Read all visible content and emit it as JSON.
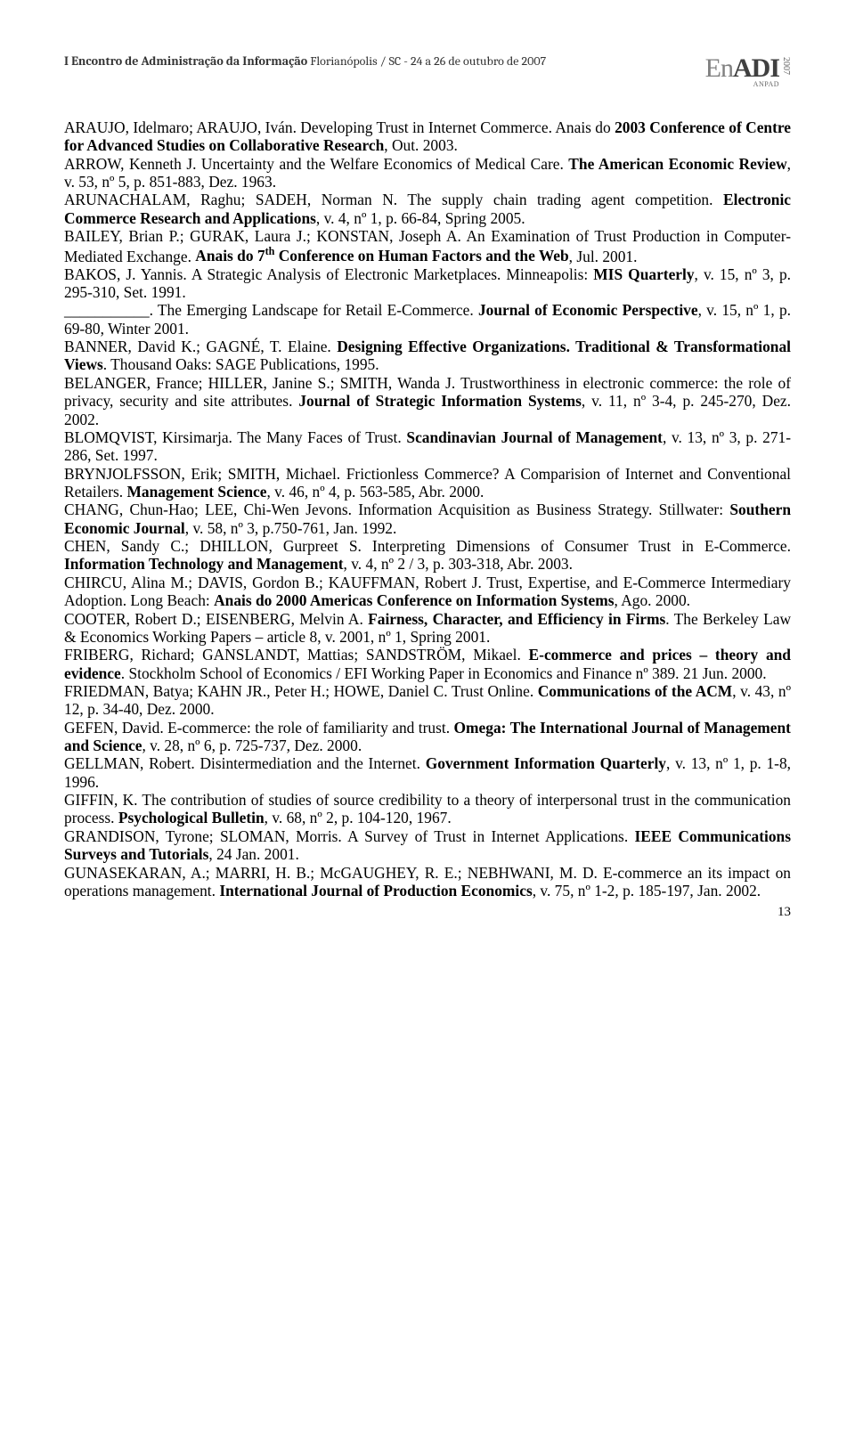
{
  "header": {
    "title_bold": "I Encontro de Administração da Informação",
    "title_rest": "   Florianópolis / SC - 24 a 26 de outubro de 2007",
    "logo_en": "En",
    "logo_adi": "ADI",
    "logo_year": "2007",
    "logo_sub": "ANPAD"
  },
  "references": [
    "ARAUJO, Idelmaro; ARAUJO, Iván. Developing Trust in Internet Commerce. Anais do <b>2003 Conference of Centre for Advanced Studies on Collaborative Research</b>, Out. 2003.",
    "ARROW, Kenneth J. Uncertainty and the Welfare Economics of Medical Care. <b>The American Economic Review</b>, v. 53, nº 5, p. 851-883, Dez. 1963.",
    "ARUNACHALAM, Raghu; SADEH, Norman N. The supply chain trading agent competition. <b>Electronic Commerce Research and Applications</b>, v. 4, nº 1, p. 66-84, Spring 2005.",
    "BAILEY, Brian P.; GURAK, Laura J.; KONSTAN, Joseph A. An Examination of Trust Production in Computer-Mediated Exchange. <b>Anais do 7<sup>th</sup> Conference on Human Factors and the Web</b>, Jul. 2001.",
    "BAKOS, J. Yannis. A Strategic Analysis of Electronic Marketplaces. Minneapolis: <b>MIS Quarterly</b>, v. 15, nº 3, p. 295-310, Set. 1991.",
    "___________. The Emerging Landscape for Retail E-Commerce. <b>Journal of Economic Perspective</b>, v. 15, nº 1, p. 69-80, Winter 2001.",
    "BANNER, David K.; GAGNÉ, T. Elaine. <b>Designing Effective Organizations. Traditional &amp; Transformational Views</b>. Thousand Oaks: SAGE Publications, 1995.",
    "BELANGER, France; HILLER, Janine S.; SMITH, Wanda J. Trustworthiness in electronic commerce: the role of privacy, security and site attributes. <b>Journal of Strategic Information Systems</b>, v. 11, nº 3-4, p. 245-270, Dez. 2002.",
    "BLOMQVIST, Kirsimarja. The Many Faces of Trust. <b>Scandinavian Journal of Management</b>, v. 13, nº 3, p. 271-286, Set. 1997.",
    "BRYNJOLFSSON, Erik; SMITH, Michael. Frictionless Commerce? A Comparision of Internet and Conventional Retailers. <b>Management Science</b>, v. 46, nº 4, p. 563-585, Abr. 2000.",
    "CHANG, Chun-Hao; LEE, Chi-Wen Jevons. Information Acquisition as Business Strategy. Stillwater: <b>Southern Economic Journal</b>, v. 58, nº 3, p.750-761, Jan. 1992.",
    "CHEN, Sandy C.; DHILLON, Gurpreet S. Interpreting Dimensions of Consumer Trust in E-Commerce. <b>Information Technology and Management</b>, v. 4, nº 2 / 3, p. 303-318, Abr. 2003.",
    "CHIRCU, Alina M.; DAVIS, Gordon B.; KAUFFMAN, Robert J. Trust, Expertise, and E-Commerce Intermediary Adoption. Long Beach: <b>Anais do 2000 Americas Conference on Information Systems</b>, Ago. 2000.",
    "COOTER, Robert D.; EISENBERG, Melvin A. <b>Fairness, Character, and Efficiency in Firms</b>. The Berkeley Law &amp; Economics Working Papers – article 8, v. 2001, nº 1, Spring 2001.",
    "FRIBERG, Richard; GANSLANDT, Mattias; SANDSTRÖM, Mikael. <b>E-commerce and prices – theory and evidence</b>. Stockholm School of Economics / EFI Working Paper in Economics and Finance nº 389. 21 Jun. 2000.",
    "FRIEDMAN, Batya; KAHN JR., Peter H.; HOWE, Daniel C. Trust Online. <b>Communications of the ACM</b>, v. 43, nº 12, p. 34-40, Dez. 2000.",
    "GEFEN, David. E-commerce: the role of familiarity and trust. <b>Omega: The International Journal of Management and Science</b>, v. 28, nº 6, p. 725-737, Dez. 2000.",
    "GELLMAN, Robert. Disintermediation and the Internet. <b>Government Information Quarterly</b>, v. 13, nº 1, p. 1-8, 1996.",
    "GIFFIN, K. The contribution of studies of source credibility to a theory of interpersonal trust in the communication process. <b>Psychological Bulletin</b>, v. 68, nº 2, p. 104-120, 1967.",
    "GRANDISON, Tyrone; SLOMAN, Morris. A Survey of Trust in Internet Applications. <b>IEEE Communications Surveys and Tutorials</b>, 24 Jan. 2001.",
    "GUNASEKARAN, A.; MARRI, H. B.; McGAUGHEY, R. E.; NEBHWANI, M. D. E-commerce an its impact on operations management. <b>International Journal of Production Economics</b>, v. 75, nº 1-2, p. 185-197, Jan. 2002."
  ],
  "page_number": "13"
}
